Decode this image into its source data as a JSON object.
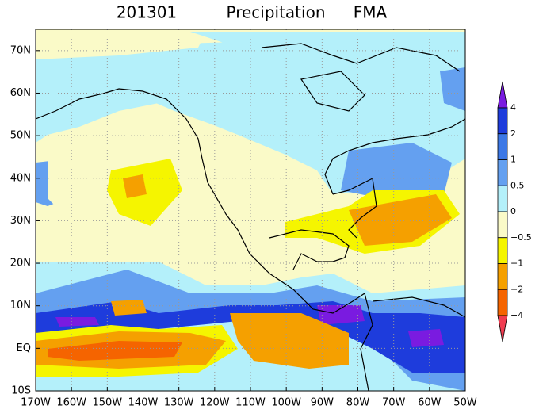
{
  "header": {
    "date": "201301",
    "variable": "Precipitation",
    "season": "FMA"
  },
  "axes": {
    "x_labels": [
      "170W",
      "160W",
      "150W",
      "140W",
      "130W",
      "120W",
      "110W",
      "100W",
      "90W",
      "80W",
      "70W",
      "60W",
      "50W"
    ],
    "y_labels": [
      "70N",
      "60N",
      "50N",
      "40N",
      "30N",
      "20N",
      "10N",
      "EQ",
      "10S"
    ]
  },
  "colorbar": {
    "labels": [
      "4",
      "2",
      "1",
      "0.5",
      "0",
      "−0.5",
      "−1",
      "−2",
      "−4"
    ]
  }
}
